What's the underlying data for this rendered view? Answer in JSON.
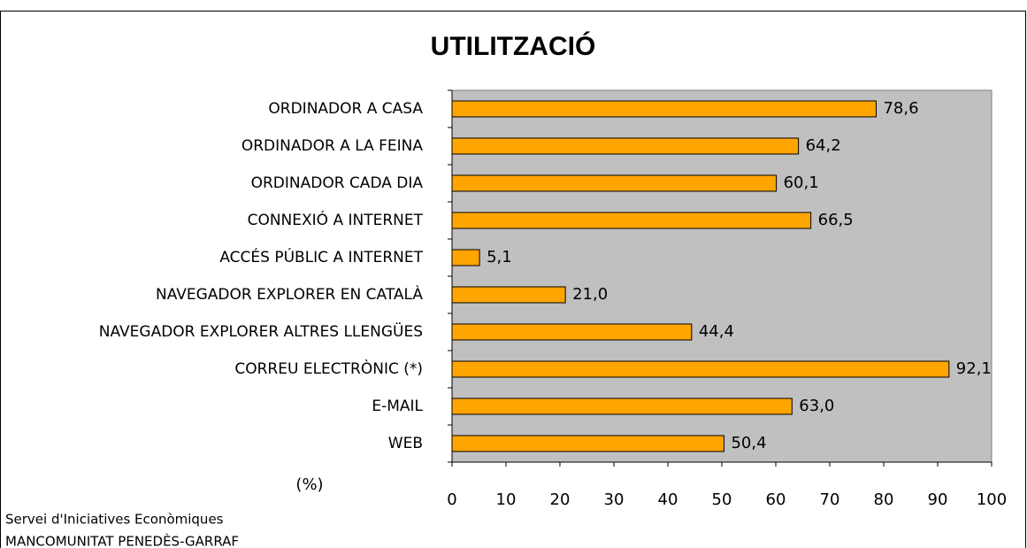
{
  "chart_data": {
    "type": "bar",
    "orientation": "horizontal",
    "title": "UTILITZACIÓ",
    "categories": [
      "ORDINADOR A CASA",
      "ORDINADOR A LA FEINA",
      "ORDINADOR CADA DIA",
      "CONNEXIÓ A INTERNET",
      "ACCÉS PÚBLIC A INTERNET",
      "NAVEGADOR EXPLORER EN CATALÀ",
      "NAVEGADOR EXPLORER ALTRES LLENGÜES",
      "CORREU ELECTRÒNIC (*)",
      "E-MAIL",
      "WEB"
    ],
    "values": [
      78.6,
      64.2,
      60.1,
      66.5,
      5.1,
      21.0,
      44.4,
      92.1,
      63.0,
      50.4
    ],
    "value_labels": [
      "78,6",
      "64,2",
      "60,1",
      "66,5",
      "5,1",
      "21,0",
      "44,4",
      "92,1",
      "63,0",
      "50,4"
    ],
    "color": "#ffa500",
    "xlabel": "(%)",
    "xlim": [
      0,
      100
    ],
    "xticks": [
      0,
      10,
      20,
      30,
      40,
      50,
      60,
      70,
      80,
      90,
      100
    ],
    "footer": [
      "Servei d'Iniciatives Econòmiques",
      "MANCOMUNITAT PENEDÈS-GARRAF"
    ]
  }
}
